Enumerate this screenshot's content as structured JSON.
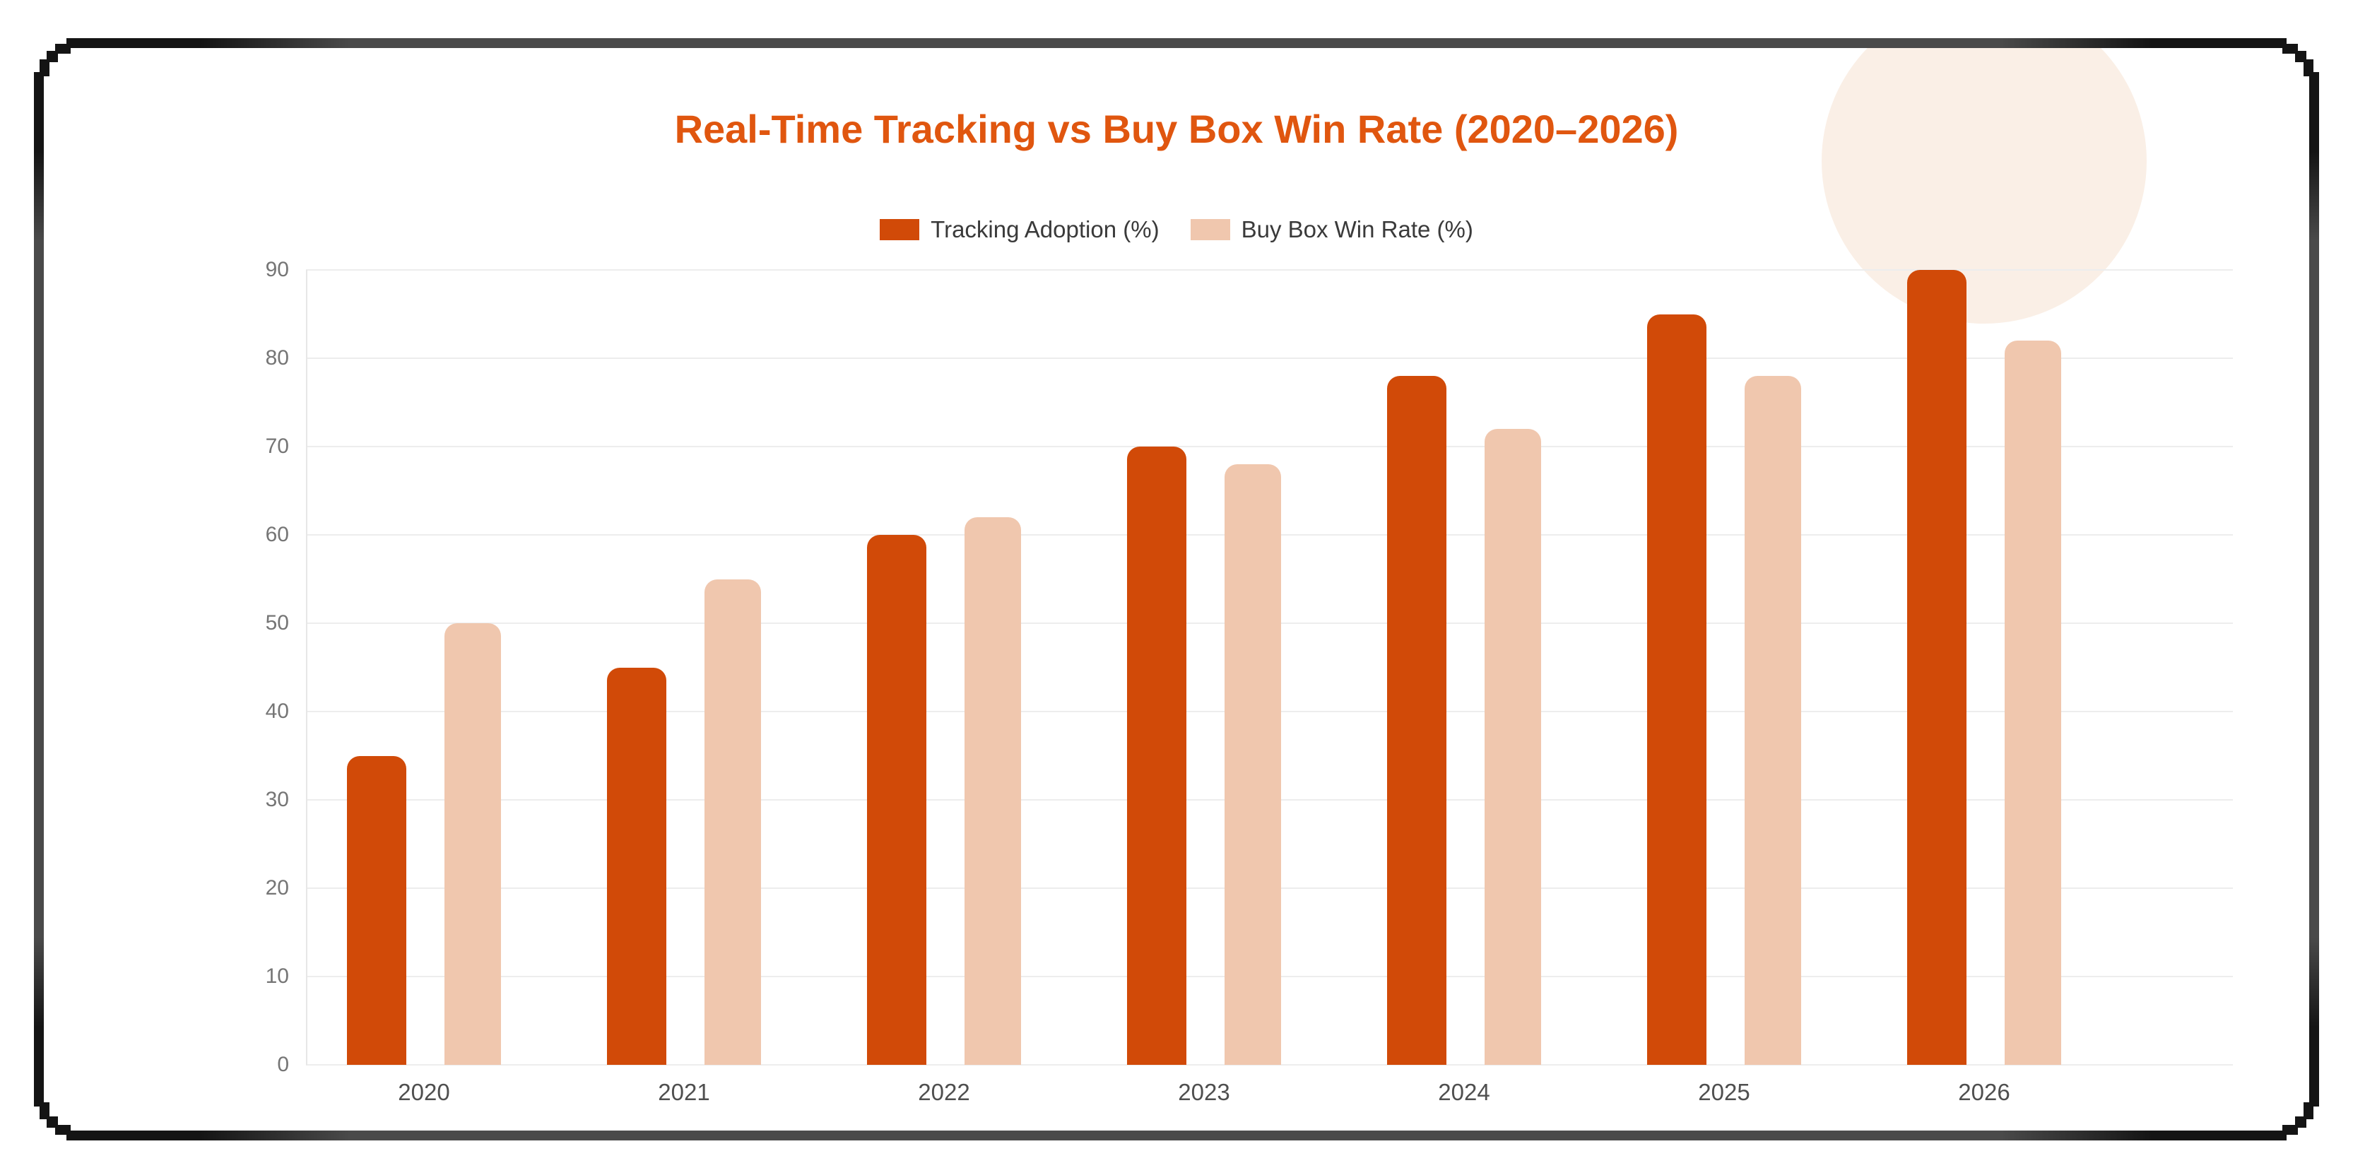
{
  "chart_data": {
    "type": "bar",
    "title": "Real-Time Tracking vs Buy Box Win Rate (2020–2026)",
    "categories": [
      "2020",
      "2021",
      "2022",
      "2023",
      "2024",
      "2025",
      "2026"
    ],
    "series": [
      {
        "name": "Tracking Adoption (%)",
        "color": "#D14A08",
        "values": [
          35,
          45,
          60,
          70,
          78,
          85,
          90
        ]
      },
      {
        "name": "Buy Box Win Rate (%)",
        "color": "#F0C7AE",
        "values": [
          50,
          55,
          62,
          68,
          72,
          78,
          82
        ]
      }
    ],
    "y_ticks": [
      0,
      10,
      20,
      30,
      40,
      50,
      60,
      70,
      80,
      90
    ],
    "ylim": [
      0,
      90
    ],
    "grid": true,
    "legend_position": "top",
    "style": {
      "title_color": "#E0560F",
      "gridline_color": "#EDEDED",
      "axis_line_color": "#E7E7E7",
      "y_tick_color": "#757575",
      "x_tick_color": "#4F4F4F",
      "legend_text_color": "#3A3A3A",
      "background": "#FFFFFF"
    }
  },
  "decor": {
    "circle_color": "#FAEFE6",
    "frame_dark": "#141414",
    "frame_mid": "#4A4A4A",
    "page_background": "#FFFFFF"
  }
}
